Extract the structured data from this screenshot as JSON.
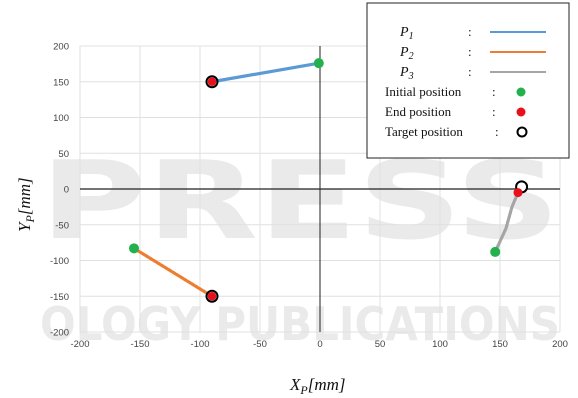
{
  "chart_data": {
    "type": "scatter",
    "xlabel": "X_P[mm]",
    "ylabel": "Y_P[mm]",
    "xlim": [
      -200,
      200
    ],
    "ylim": [
      -200,
      200
    ],
    "xticks": [
      -200,
      -150,
      -100,
      -50,
      0,
      50,
      100,
      150,
      200
    ],
    "yticks": [
      -200,
      -150,
      -100,
      -50,
      0,
      50,
      100,
      150,
      200
    ],
    "grid": true,
    "legend_position": "top-right",
    "series": [
      {
        "name": "P1",
        "color": "#5b9bd5",
        "x": [
          -1,
          -90
        ],
        "y": [
          176,
          150
        ]
      },
      {
        "name": "P2",
        "color": "#ed7d31",
        "x": [
          -155,
          -90
        ],
        "y": [
          -83,
          -150
        ]
      },
      {
        "name": "P3",
        "color": "#a5a5a5",
        "x": [
          146,
          155,
          160,
          165
        ],
        "y": [
          -88,
          -55,
          -25,
          -5
        ]
      }
    ],
    "initial_positions": {
      "name": "Initial position",
      "color": "#22b14c",
      "points": [
        [
          -1,
          176
        ],
        [
          -155,
          -83
        ],
        [
          146,
          -88
        ]
      ]
    },
    "end_positions": {
      "name": "End position",
      "color": "#e8101a",
      "points": [
        [
          -90,
          150
        ],
        [
          -90,
          -150
        ],
        [
          165,
          -5
        ]
      ]
    },
    "target_positions": {
      "name": "Target position",
      "points": [
        [
          -90,
          150
        ],
        [
          -90,
          -150
        ],
        [
          168,
          3
        ]
      ]
    }
  },
  "legend": {
    "p1_label": "P",
    "p1_sub": "1",
    "p2_label": "P",
    "p2_sub": "2",
    "p3_label": "P",
    "p3_sub": "3",
    "colon": ":",
    "initial_label": "Initial position",
    "end_label": "End position",
    "target_label": "Target position"
  },
  "axis_titles": {
    "x_main": "X",
    "x_sub": "P",
    "x_unit": "[mm]",
    "y_main": "Y",
    "y_sub": "P",
    "y_unit": "[mm]"
  },
  "watermark": {
    "big": "PRESS",
    "small": "OLOGY PUBLICATIONS"
  }
}
